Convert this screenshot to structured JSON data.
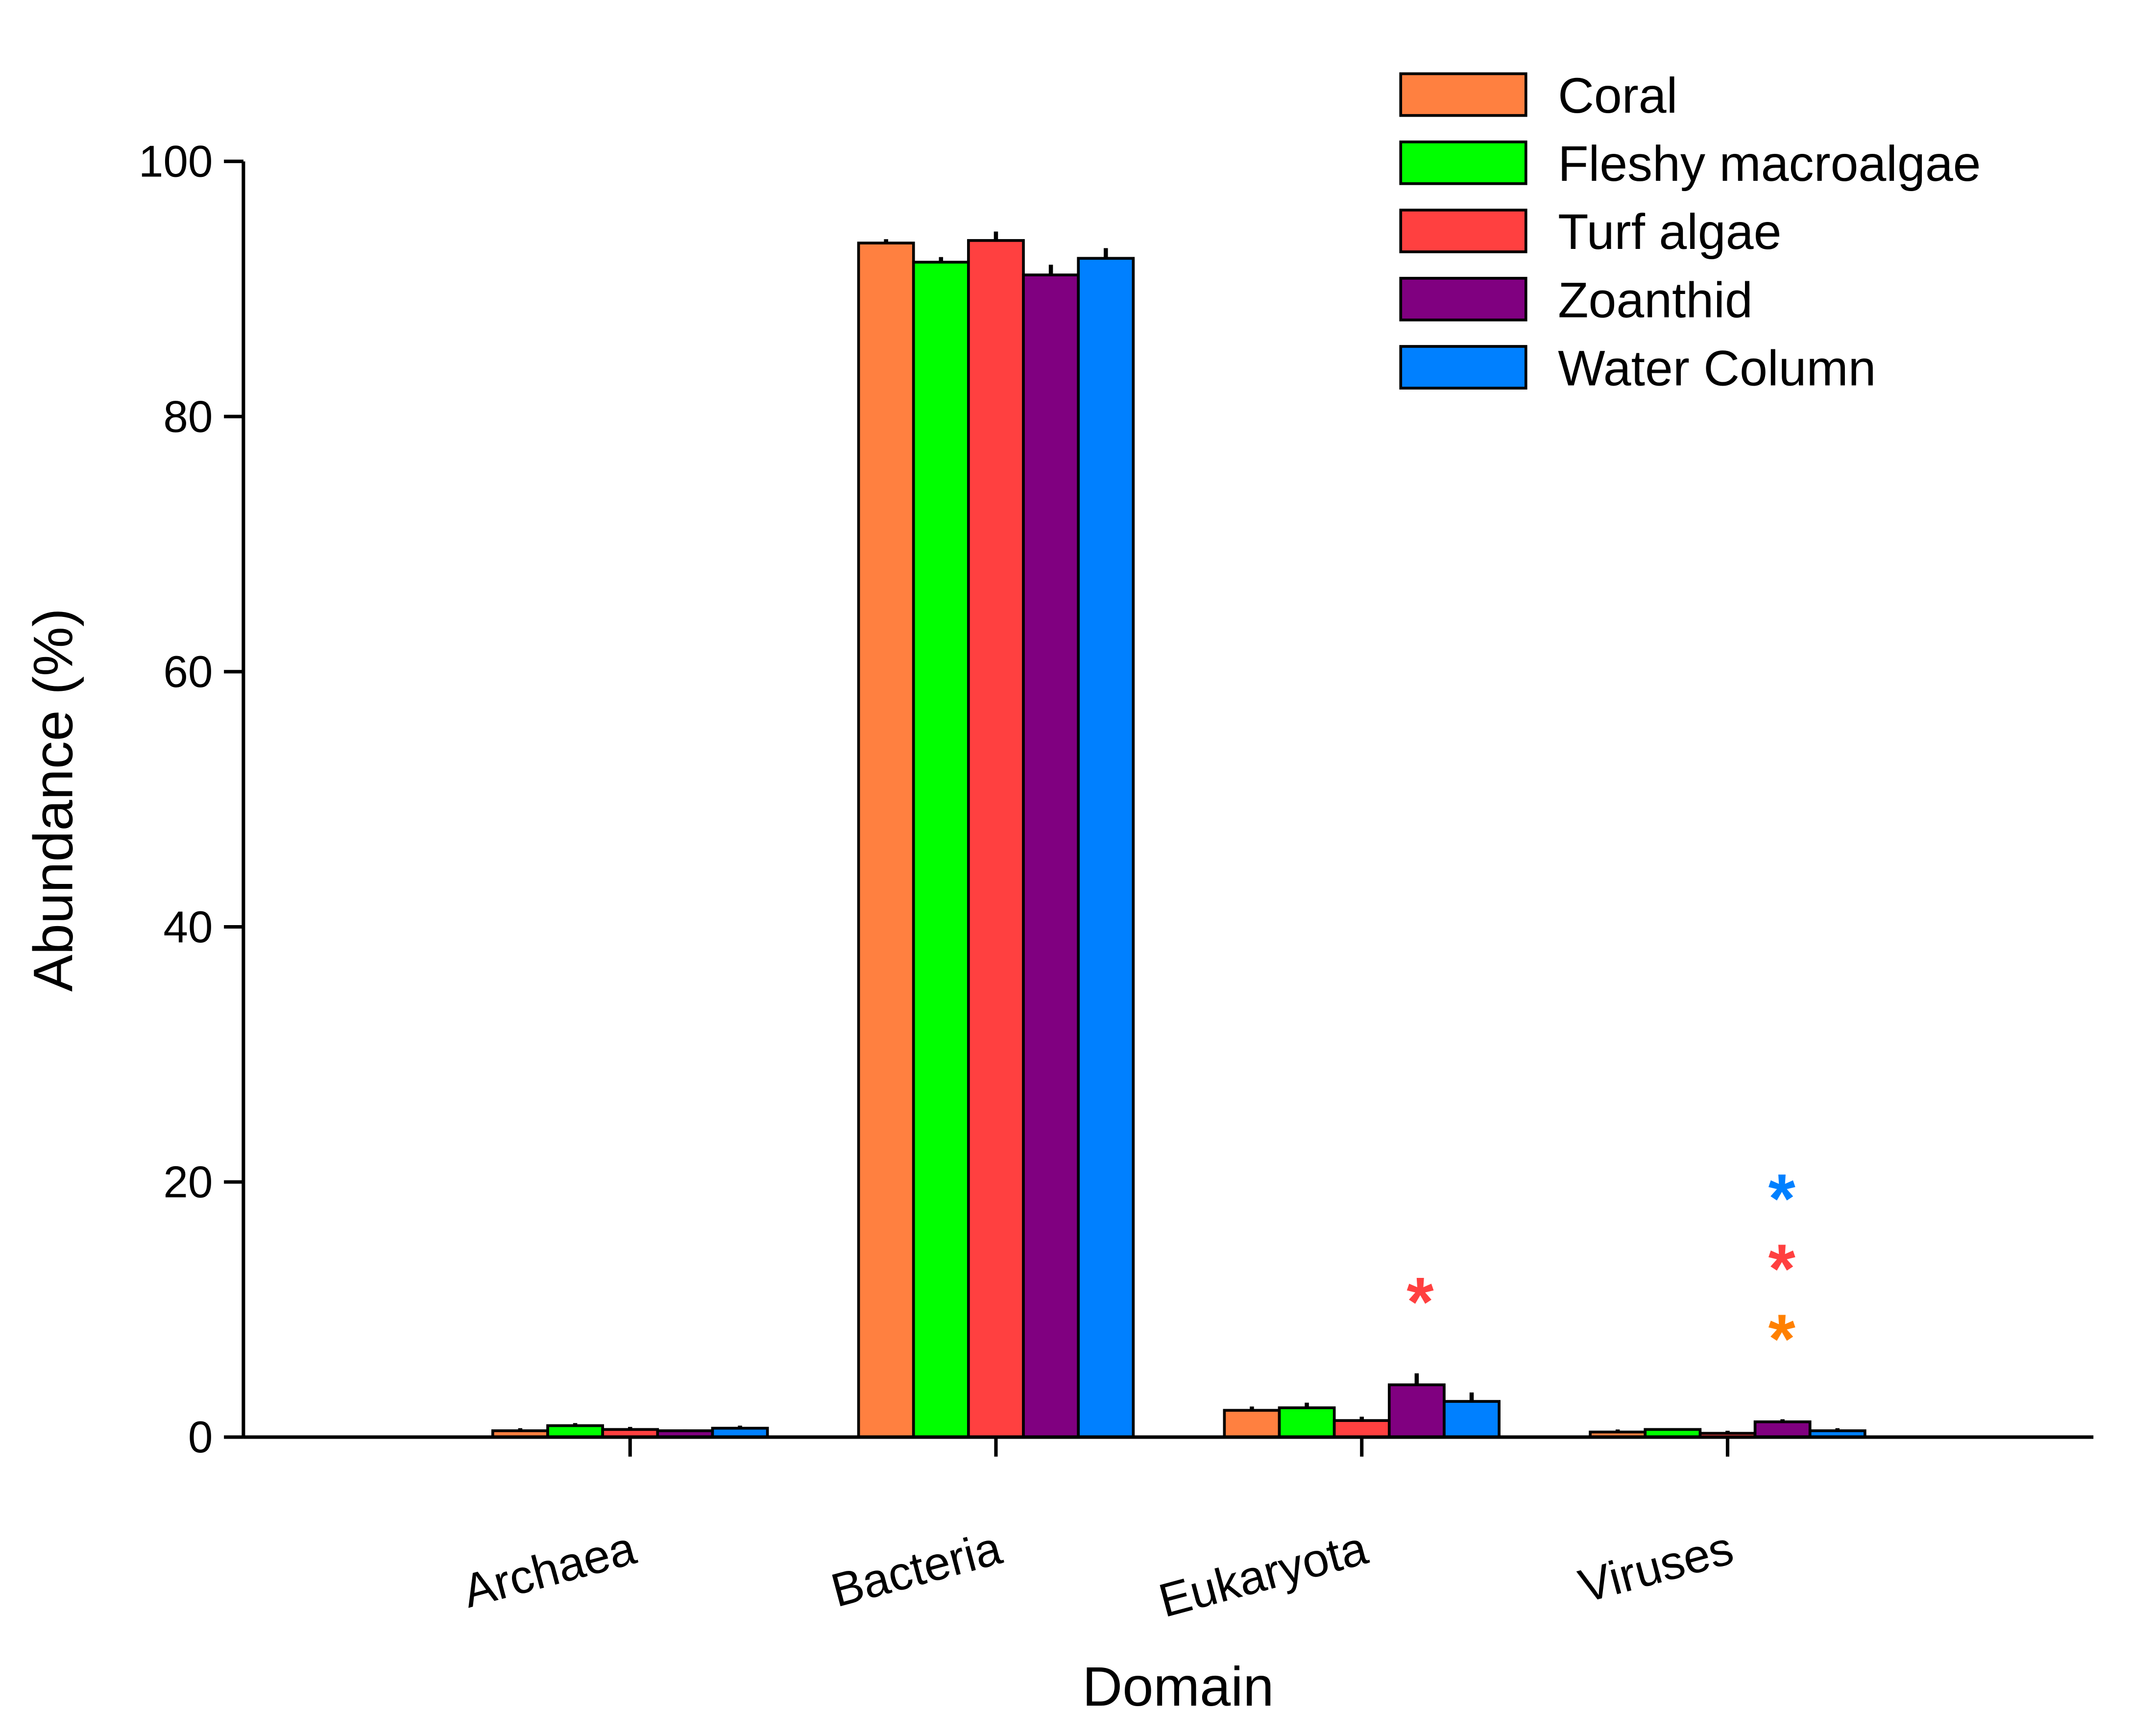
{
  "chart_data": {
    "type": "bar",
    "title": "",
    "xlabel": "Domain",
    "ylabel": "Abundance (%)",
    "ylim": [
      0,
      100
    ],
    "yticks": [
      "0",
      "20",
      "40",
      "60",
      "80",
      "100"
    ],
    "grid": false,
    "legend_position": "top-right",
    "categories": [
      "Archaea",
      "Bacteria",
      "Eukaryota",
      "Viruses"
    ],
    "series": [
      {
        "name": "Coral",
        "color": "#FF8040",
        "values": [
          0.5,
          93.6,
          2.1,
          0.4
        ],
        "errors": [
          0.2,
          0.3,
          0.3,
          0.2
        ]
      },
      {
        "name": "Fleshy macroalgae",
        "color": "#00FF00",
        "values": [
          0.9,
          92.1,
          2.3,
          0.6
        ],
        "errors": [
          0.2,
          0.4,
          0.4,
          0.1
        ]
      },
      {
        "name": "Turf algae",
        "color": "#FF4040",
        "values": [
          0.6,
          93.8,
          1.3,
          0.3
        ],
        "errors": [
          0.2,
          0.7,
          0.3,
          0.2
        ]
      },
      {
        "name": "Zoanthid",
        "color": "#800080",
        "values": [
          0.5,
          91.1,
          4.1,
          1.2
        ],
        "errors": [
          0.1,
          0.8,
          0.9,
          0.2
        ]
      },
      {
        "name": "Water Column",
        "color": "#0080FF",
        "values": [
          0.7,
          92.4,
          2.8,
          0.5
        ],
        "errors": [
          0.2,
          0.8,
          0.7,
          0.2
        ]
      }
    ],
    "annotations": [
      {
        "text": "*",
        "category": "Eukaryota",
        "series": "Turf algae",
        "y": 12.0,
        "color": "#FF4040"
      },
      {
        "text": "*",
        "category": "Viruses",
        "series": "Water Column",
        "y": 20.1,
        "color": "#0080FF"
      },
      {
        "text": "*",
        "category": "Viruses",
        "series": "Turf algae",
        "y": 14.6,
        "color": "#FF4040"
      },
      {
        "text": "*",
        "category": "Viruses",
        "series": "Coral",
        "y": 9.1,
        "color": "#FF8000"
      }
    ]
  }
}
